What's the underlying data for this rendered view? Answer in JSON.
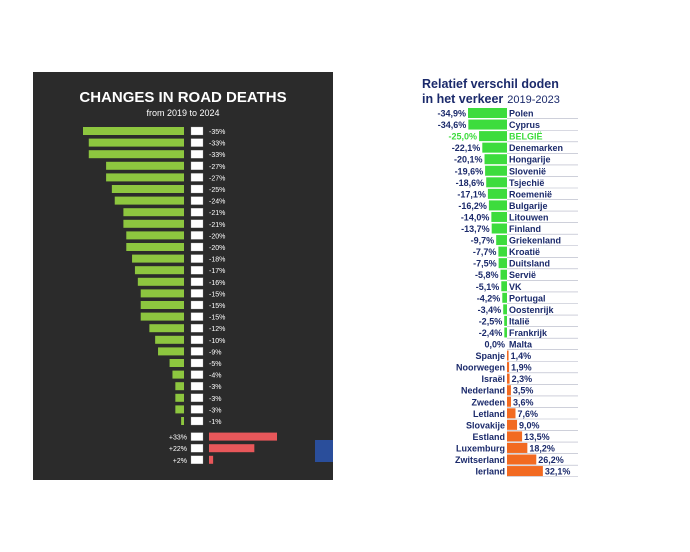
{
  "left": {
    "title": "CHANGES IN ROAD DEATHS",
    "subtitle": "from 2019 to 2024"
  },
  "right": {
    "title_line1": "Relatief verschil doden",
    "title_line2_bold": "in het verkeer",
    "title_line2_year": "2019-2023"
  },
  "chart_data": [
    {
      "type": "bar",
      "title": "CHANGES IN ROAD DEATHS",
      "subtitle": "from 2019 to 2024",
      "orientation": "horizontal",
      "values": [
        -35,
        -33,
        -33,
        -27,
        -27,
        -25,
        -24,
        -21,
        -21,
        -20,
        -20,
        -18,
        -17,
        -16,
        -15,
        -15,
        -15,
        -12,
        -10,
        -9,
        -5,
        -4,
        -3,
        -3,
        -3,
        -1,
        33,
        22,
        2
      ],
      "labels": [
        "-35%",
        "-33%",
        "-33%",
        "-27%",
        "-27%",
        "-25%",
        "-24%",
        "-21%",
        "-21%",
        "-20%",
        "-20%",
        "-18%",
        "-17%",
        "-16%",
        "-15%",
        "-15%",
        "-15%",
        "-12%",
        "-10%",
        "-9%",
        "-5%",
        "-4%",
        "-3%",
        "-3%",
        "-3%",
        "-1%",
        "+33%",
        "+22%",
        "+2%"
      ],
      "colors": {
        "negative": "#8dc63f",
        "positive": "#e8575a"
      }
    },
    {
      "type": "bar",
      "title": "Relatief verschil doden in het verkeer 2019-2023",
      "orientation": "horizontal",
      "categories": [
        "Polen",
        "Cyprus",
        "BELGIË",
        "Denemarken",
        "Hongarije",
        "Slovenië",
        "Tsjechië",
        "Roemenië",
        "Bulgarije",
        "Litouwen",
        "Finland",
        "Griekenland",
        "Kroatië",
        "Duitsland",
        "Servië",
        "VK",
        "Portugal",
        "Oostenrijk",
        "Italië",
        "Frankrijk",
        "Malta",
        "Spanje",
        "Noorwegen",
        "Israël",
        "Nederland",
        "Zweden",
        "Letland",
        "Slovakije",
        "Estland",
        "Luxemburg",
        "Zwitserland",
        "Ierland"
      ],
      "values": [
        -34.9,
        -34.6,
        -25.0,
        -22.1,
        -20.1,
        -19.6,
        -18.6,
        -17.1,
        -16.2,
        -14.0,
        -13.7,
        -9.7,
        -7.7,
        -7.5,
        -5.8,
        -5.1,
        -4.2,
        -3.4,
        -2.5,
        -2.4,
        0.0,
        1.4,
        1.9,
        2.3,
        3.5,
        3.6,
        7.6,
        9.0,
        13.5,
        18.2,
        26.2,
        32.1
      ],
      "labels": [
        "-34,9%",
        "-34,6%",
        "-25,0%",
        "-22,1%",
        "-20,1%",
        "-19,6%",
        "-18,6%",
        "-17,1%",
        "-16,2%",
        "-14,0%",
        "-13,7%",
        "-9,7%",
        "-7,7%",
        "-7,5%",
        "-5,8%",
        "-5,1%",
        "-4,2%",
        "-3,4%",
        "-2,5%",
        "-2,4%",
        "0,0%",
        "1,4%",
        "1,9%",
        "2,3%",
        "3,5%",
        "3,6%",
        "7,6%",
        "9,0%",
        "13,5%",
        "18,2%",
        "26,2%",
        "32,1%"
      ],
      "highlight": "BELGIË",
      "colors": {
        "negative": "#3ddc3d",
        "positive": "#f26a21",
        "highlight": "#3ddc3d",
        "text": "#1b2a6b"
      }
    }
  ]
}
